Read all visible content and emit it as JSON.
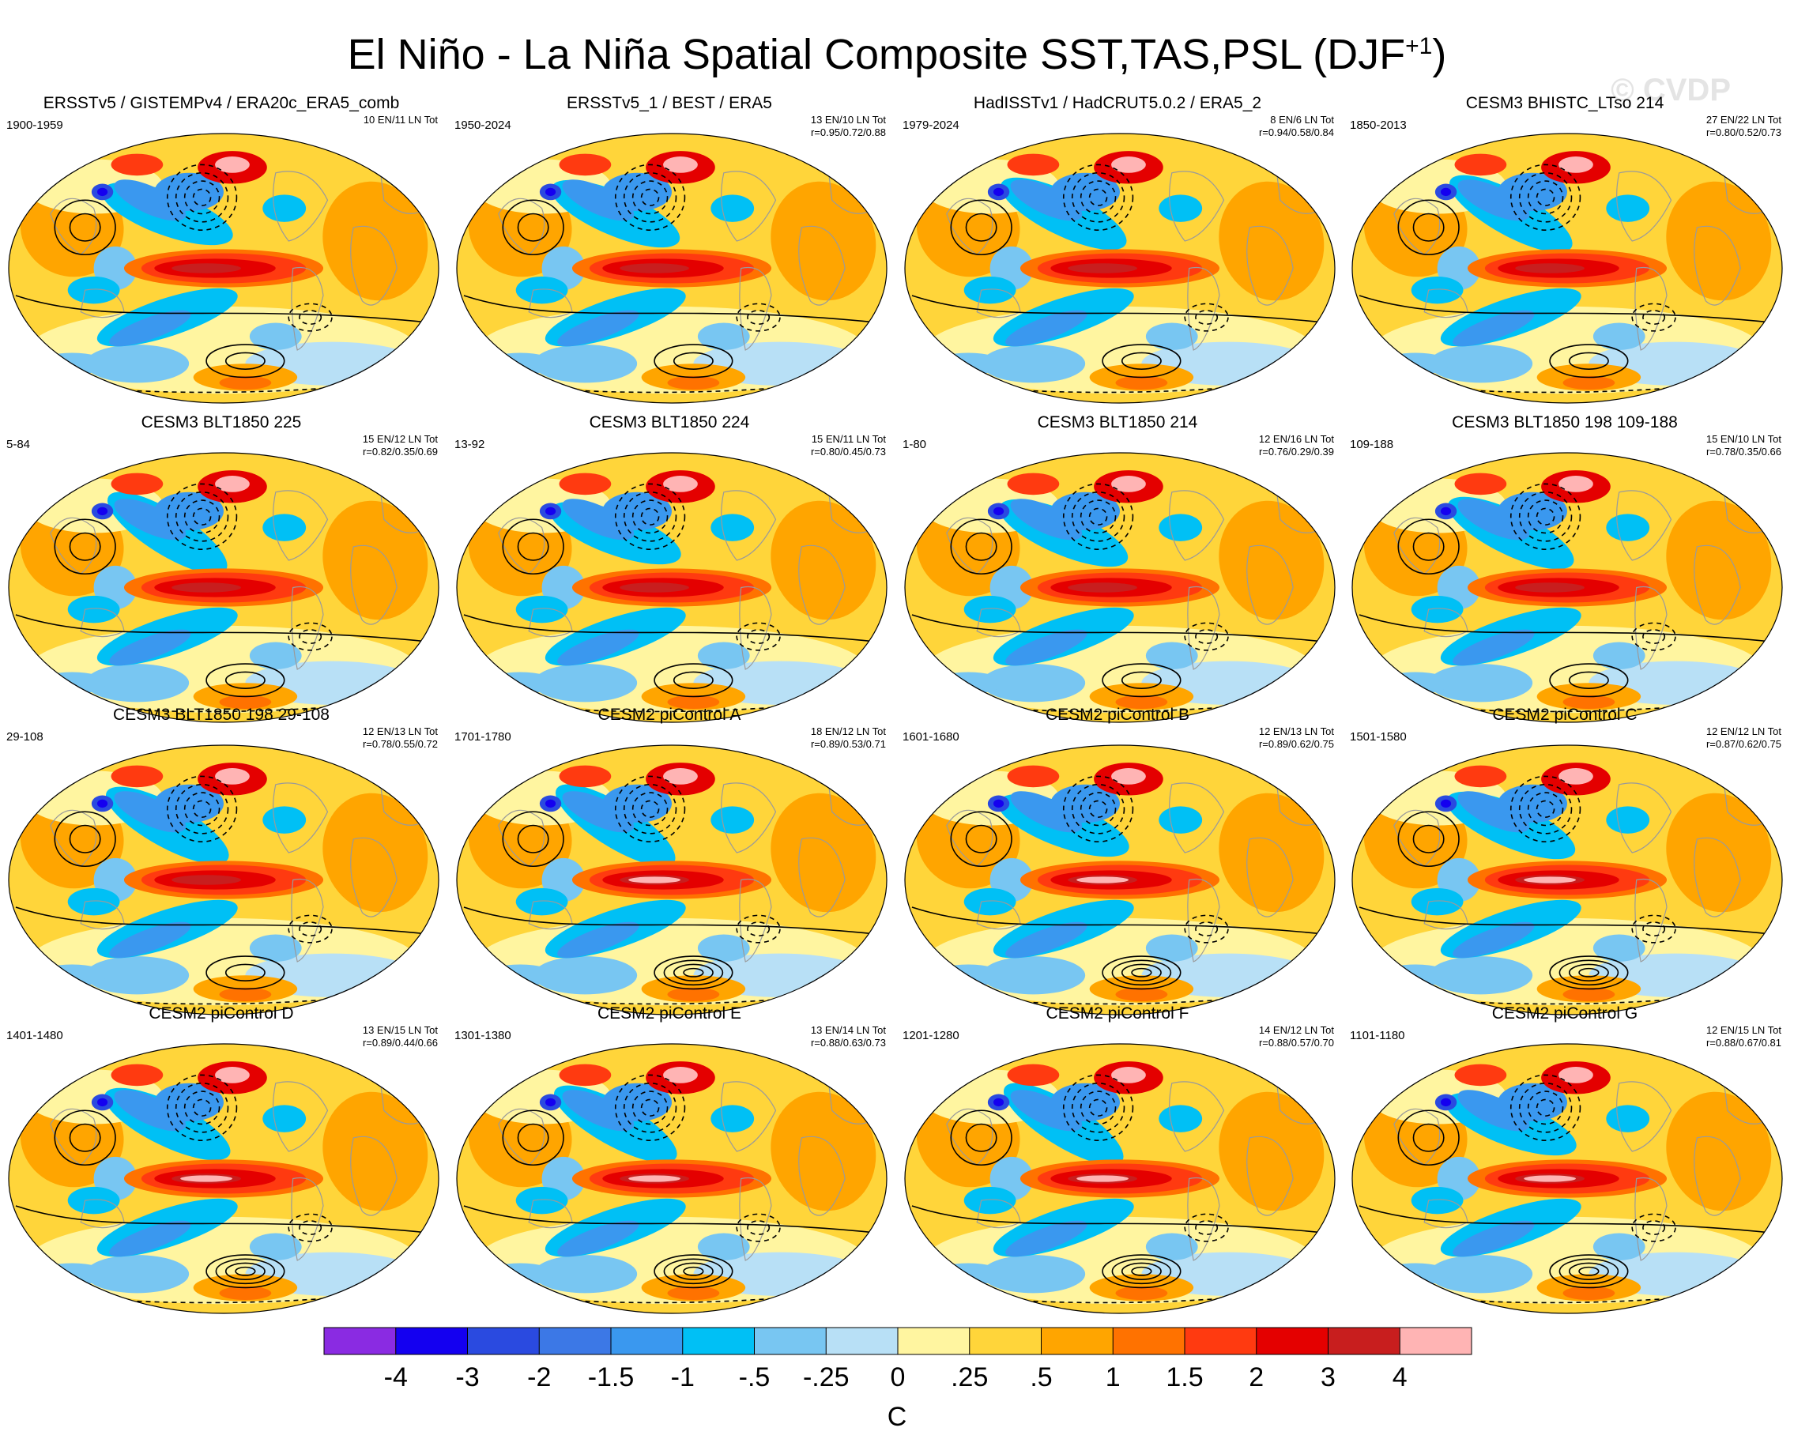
{
  "title": {
    "main": "El Niño - La Niña Spatial Composite SST,TAS,PSL (DJF",
    "superscript": "+1",
    "close": ")"
  },
  "watermark": "© CVDP",
  "colors": {
    "land_outline": "#9a9a9a",
    "contour": "#000000"
  },
  "chart_data": {
    "type": "map-panels",
    "title": "El Niño - La Niña Spatial Composite SST,TAS,PSL (DJF+1)",
    "colorbar": {
      "unit": "C",
      "levels": [
        "-4",
        "-3",
        "-2",
        "-1.5",
        "-1",
        "-.5",
        "-.25",
        "0",
        ".25",
        ".5",
        "1",
        "1.5",
        "2",
        "3",
        "4"
      ],
      "colors": [
        "#8a2be2",
        "#1400f0",
        "#2a4ae0",
        "#3c78e6",
        "#3a98ef",
        "#00c0f5",
        "#78c6f2",
        "#b8e0f6",
        "#fff5a0",
        "#ffd53a",
        "#ffa500",
        "#ff7200",
        "#ff3a10",
        "#e40000",
        "#c81e1e",
        "#ffb4b4"
      ]
    },
    "panels": [
      {
        "title": "ERSSTv5 / GISTEMPv4 / ERA20c_ERA5_comb",
        "years": "1900-1959",
        "stats": [
          "10 EN/11 LN Tot"
        ]
      },
      {
        "title": "ERSSTv5_1 / BEST / ERA5",
        "years": "1950-2024",
        "stats": [
          "13 EN/10 LN Tot",
          "r=0.95/0.72/0.88"
        ]
      },
      {
        "title": "HadISSTv1 / HadCRUT5.0.2 / ERA5_2",
        "years": "1979-2024",
        "stats": [
          "8 EN/6 LN Tot",
          "r=0.94/0.58/0.84"
        ]
      },
      {
        "title": "CESM3 BHISTC_LTso 214",
        "years": "1850-2013",
        "stats": [
          "27 EN/22 LN Tot",
          "r=0.80/0.52/0.73"
        ]
      },
      {
        "title": "CESM3 BLT1850 225",
        "years": "5-84",
        "stats": [
          "15 EN/12 LN Tot",
          "r=0.82/0.35/0.69"
        ]
      },
      {
        "title": "CESM3 BLT1850 224",
        "years": "13-92",
        "stats": [
          "15 EN/11 LN Tot",
          "r=0.80/0.45/0.73"
        ]
      },
      {
        "title": "CESM3 BLT1850 214",
        "years": "1-80",
        "stats": [
          "12 EN/16 LN Tot",
          "r=0.76/0.29/0.39"
        ]
      },
      {
        "title": "CESM3 BLT1850 198 109-188",
        "years": "109-188",
        "stats": [
          "15 EN/10 LN Tot",
          "r=0.78/0.35/0.66"
        ]
      },
      {
        "title": "CESM3 BLT1850 198 29-108",
        "years": "29-108",
        "stats": [
          "12 EN/13 LN Tot",
          "r=0.78/0.55/0.72"
        ]
      },
      {
        "title": "CESM2 piControl A",
        "years": "1701-1780",
        "stats": [
          "18 EN/12 LN Tot",
          "r=0.89/0.53/0.71"
        ]
      },
      {
        "title": "CESM2 piControl B",
        "years": "1601-1680",
        "stats": [
          "12 EN/13 LN Tot",
          "r=0.89/0.62/0.75"
        ]
      },
      {
        "title": "CESM2 piControl C",
        "years": "1501-1580",
        "stats": [
          "12 EN/12 LN Tot",
          "r=0.87/0.62/0.75"
        ]
      },
      {
        "title": "CESM2 piControl D",
        "years": "1401-1480",
        "stats": [
          "13 EN/15 LN Tot",
          "r=0.89/0.44/0.66"
        ]
      },
      {
        "title": "CESM2 piControl E",
        "years": "1301-1380",
        "stats": [
          "13 EN/14 LN Tot",
          "r=0.88/0.63/0.73"
        ]
      },
      {
        "title": "CESM2 piControl F",
        "years": "1201-1280",
        "stats": [
          "14 EN/12 LN Tot",
          "r=0.88/0.57/0.70"
        ]
      },
      {
        "title": "CESM2 piControl G",
        "years": "1101-1180",
        "stats": [
          "12 EN/15 LN Tot",
          "r=0.88/0.67/0.81"
        ]
      }
    ]
  }
}
